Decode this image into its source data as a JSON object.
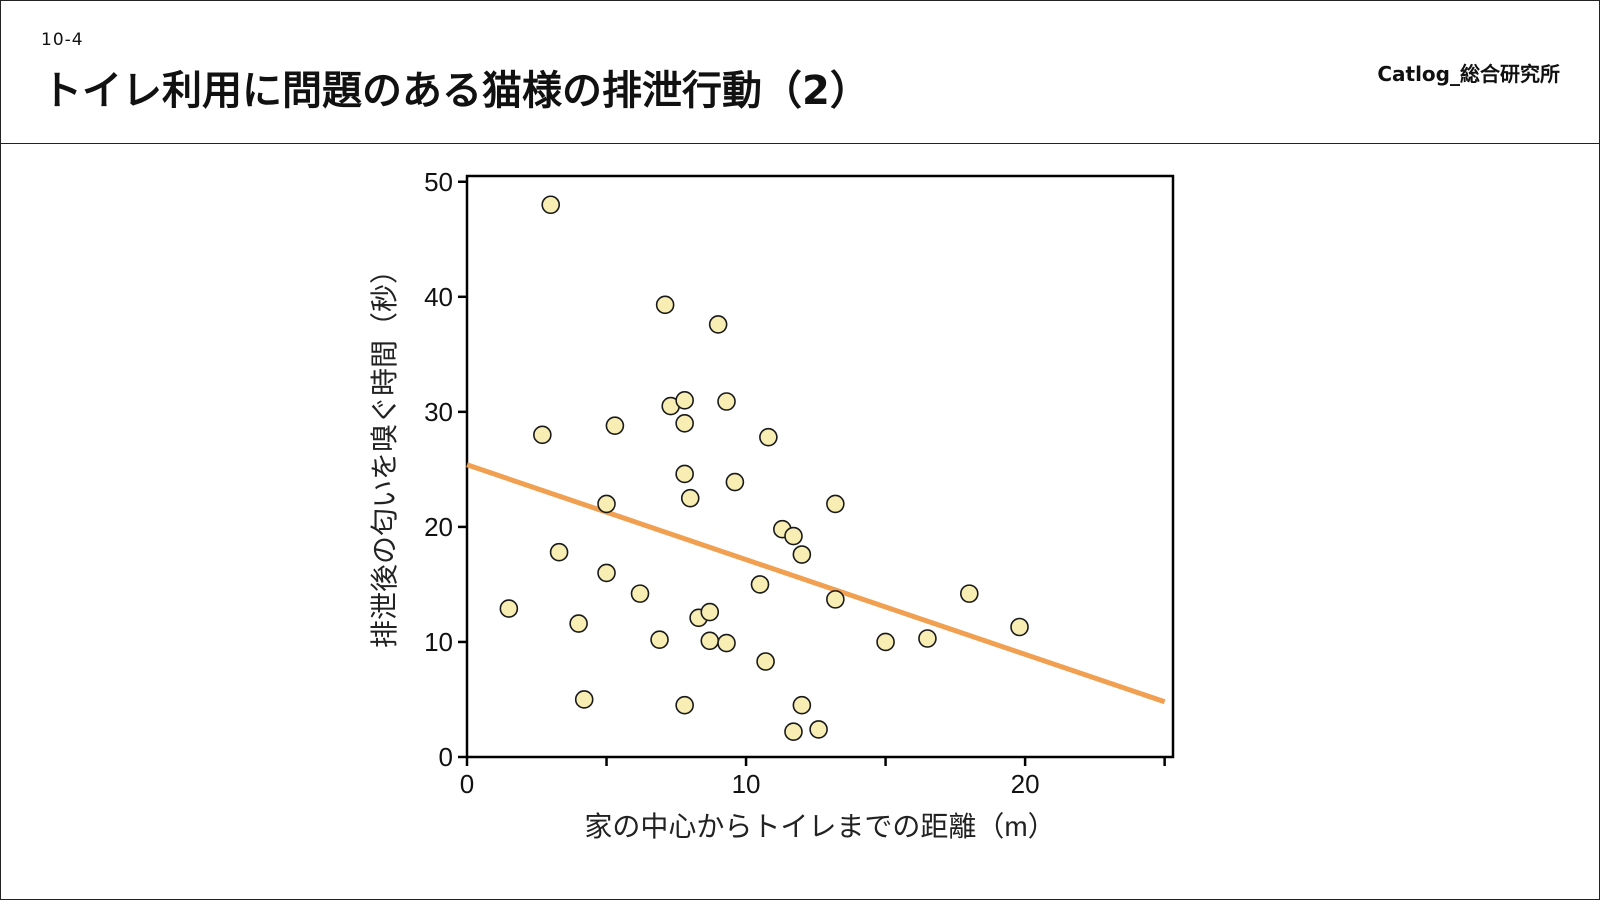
{
  "header": {
    "section_number": "10-4",
    "title": "トイレ利用に問題のある猫様の排泄行動（2）",
    "brand": "Catlog_総合研究所"
  },
  "colors": {
    "point_fill": "#f8eeb4",
    "point_stroke": "#1a1a1a",
    "trend_line": "#f0a050",
    "axis": "#000000"
  },
  "chart_data": {
    "type": "scatter",
    "title": "",
    "xlabel": "家の中心からトイレまでの距離（m）",
    "ylabel": "排泄後の匂いを嗅ぐ時間（秒）",
    "xlim": [
      0,
      25.3
    ],
    "ylim": [
      0,
      50.5
    ],
    "xticks": [
      0,
      10,
      20
    ],
    "xticks_minor": [
      5,
      15,
      25
    ],
    "yticks": [
      0,
      10,
      20,
      30,
      40,
      50
    ],
    "grid": false,
    "trendline": {
      "x": [
        0,
        25
      ],
      "y": [
        25.4,
        4.8
      ]
    },
    "points": [
      {
        "x": 3.0,
        "y": 48.0
      },
      {
        "x": 1.5,
        "y": 12.9
      },
      {
        "x": 2.7,
        "y": 28.0
      },
      {
        "x": 3.3,
        "y": 17.8
      },
      {
        "x": 4.0,
        "y": 11.6
      },
      {
        "x": 4.2,
        "y": 5.0
      },
      {
        "x": 5.0,
        "y": 22.0
      },
      {
        "x": 5.0,
        "y": 16.0
      },
      {
        "x": 5.3,
        "y": 28.8
      },
      {
        "x": 6.2,
        "y": 14.2
      },
      {
        "x": 6.9,
        "y": 10.2
      },
      {
        "x": 7.1,
        "y": 39.3
      },
      {
        "x": 7.3,
        "y": 30.5
      },
      {
        "x": 7.8,
        "y": 31.0
      },
      {
        "x": 7.8,
        "y": 29.0
      },
      {
        "x": 7.8,
        "y": 24.6
      },
      {
        "x": 7.8,
        "y": 4.5
      },
      {
        "x": 8.0,
        "y": 22.5
      },
      {
        "x": 8.3,
        "y": 12.1
      },
      {
        "x": 8.7,
        "y": 12.6
      },
      {
        "x": 8.7,
        "y": 10.1
      },
      {
        "x": 9.0,
        "y": 37.6
      },
      {
        "x": 9.3,
        "y": 30.9
      },
      {
        "x": 9.3,
        "y": 9.9
      },
      {
        "x": 9.6,
        "y": 23.9
      },
      {
        "x": 10.5,
        "y": 15.0
      },
      {
        "x": 10.7,
        "y": 8.3
      },
      {
        "x": 10.8,
        "y": 27.8
      },
      {
        "x": 11.3,
        "y": 19.8
      },
      {
        "x": 11.7,
        "y": 19.2
      },
      {
        "x": 11.7,
        "y": 2.2
      },
      {
        "x": 12.0,
        "y": 17.6
      },
      {
        "x": 12.0,
        "y": 4.5
      },
      {
        "x": 12.6,
        "y": 2.4
      },
      {
        "x": 13.2,
        "y": 22.0
      },
      {
        "x": 13.2,
        "y": 13.7
      },
      {
        "x": 15.0,
        "y": 10.0
      },
      {
        "x": 16.5,
        "y": 10.3
      },
      {
        "x": 18.0,
        "y": 14.2
      },
      {
        "x": 19.8,
        "y": 11.3
      }
    ]
  }
}
